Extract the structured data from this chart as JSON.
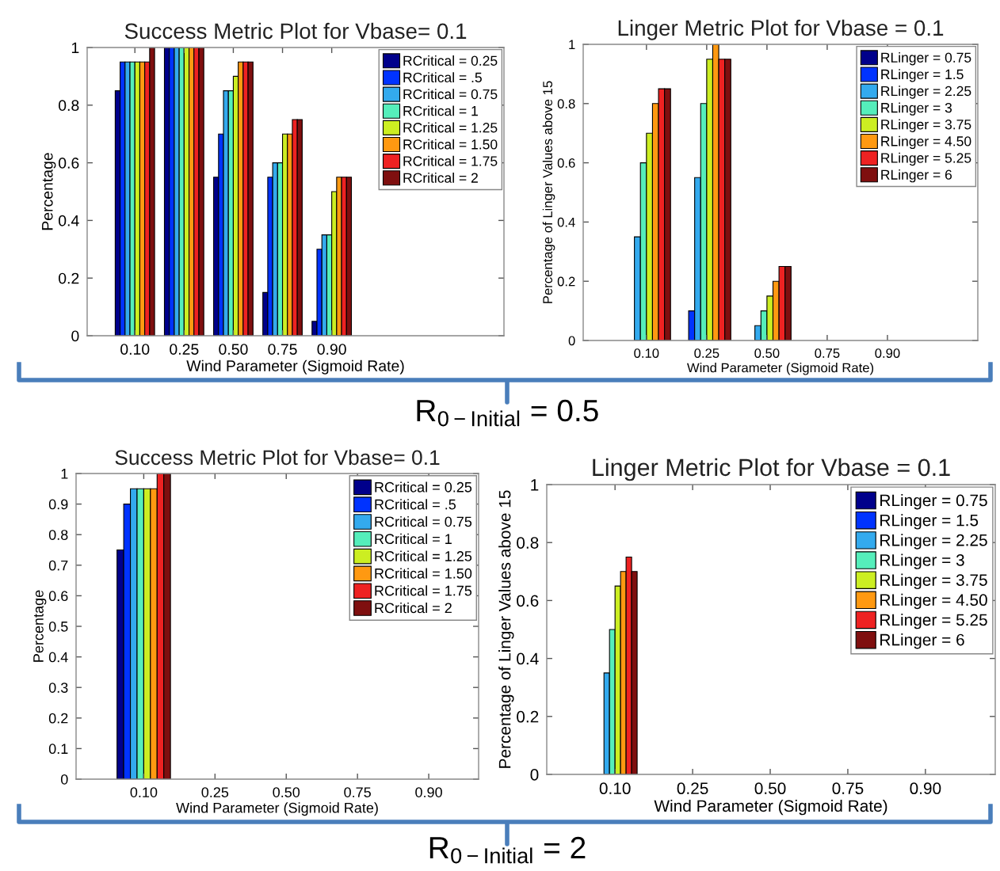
{
  "chart_data": [
    {
      "type": "bar",
      "title": "Success Metric Plot for Vbase= 0.1",
      "xlabel": "Wind Parameter (Sigmoid Rate)",
      "ylabel": "Percentage",
      "categories": [
        "0.10",
        "0.25",
        "0.50",
        "0.75",
        "0.90"
      ],
      "ylim": [
        0,
        1
      ],
      "yticks": [
        0,
        0.2,
        0.4,
        0.6,
        0.8,
        1
      ],
      "legend": "top right",
      "annotations": [
        "R$_{0−Initial}$ = 0.5"
      ],
      "series": [
        {
          "name": "RCritical = 0.25",
          "color": "#00008b",
          "values": [
            0.85,
            1,
            0.55,
            0.15,
            0.05
          ]
        },
        {
          "name": "RCritical = .5",
          "color": "#0033ff",
          "values": [
            0.95,
            1,
            0.7,
            0.55,
            0.3
          ]
        },
        {
          "name": "RCritical = 0.75",
          "color": "#33aaee",
          "values": [
            0.95,
            1,
            0.85,
            0.6,
            0.35
          ]
        },
        {
          "name": "RCritical = 1",
          "color": "#55eebb",
          "values": [
            0.95,
            1,
            0.85,
            0.6,
            0.35
          ]
        },
        {
          "name": "RCritical = 1.25",
          "color": "#ccee22",
          "values": [
            0.95,
            1,
            0.9,
            0.7,
            0.5
          ]
        },
        {
          "name": "RCritical = 1.50",
          "color": "#ff9911",
          "values": [
            0.95,
            1,
            0.95,
            0.7,
            0.55
          ]
        },
        {
          "name": "RCritical = 1.75",
          "color": "#ee2222",
          "values": [
            0.95,
            1,
            0.95,
            0.75,
            0.55
          ]
        },
        {
          "name": "RCritical = 2",
          "color": "#7f0f0f",
          "values": [
            1,
            1,
            0.95,
            0.75,
            0.55
          ]
        }
      ]
    },
    {
      "type": "bar",
      "title": "Linger Metric Plot for Vbase = 0.1",
      "xlabel": "Wind Parameter (Sigmoid Rate)",
      "ylabel": "Percentage of Linger Values above 15",
      "categories": [
        "0.10",
        "0.25",
        "0.50",
        "0.75",
        "0.90"
      ],
      "ylim": [
        0,
        1
      ],
      "yticks": [
        0,
        0.2,
        0.4,
        0.6,
        0.8,
        1
      ],
      "legend": "top right",
      "series": [
        {
          "name": "RLinger = 0.75",
          "color": "#00008b",
          "values": [
            0,
            0,
            0,
            0,
            0
          ]
        },
        {
          "name": "RLinger = 1.5",
          "color": "#0033ff",
          "values": [
            0,
            0.1,
            0,
            0,
            0
          ]
        },
        {
          "name": "RLinger = 2.25",
          "color": "#33aaee",
          "values": [
            0.35,
            0.55,
            0.05,
            0,
            0
          ]
        },
        {
          "name": "RLinger = 3",
          "color": "#55eebb",
          "values": [
            0.6,
            0.8,
            0.1,
            0,
            0
          ]
        },
        {
          "name": "RLinger = 3.75",
          "color": "#ccee22",
          "values": [
            0.7,
            0.95,
            0.15,
            0,
            0
          ]
        },
        {
          "name": "RLinger = 4.50",
          "color": "#ff9911",
          "values": [
            0.8,
            1,
            0.2,
            0,
            0
          ]
        },
        {
          "name": "RLinger = 5.25",
          "color": "#ee2222",
          "values": [
            0.85,
            0.95,
            0.25,
            0,
            0
          ]
        },
        {
          "name": "RLinger = 6",
          "color": "#7f0f0f",
          "values": [
            0.85,
            0.95,
            0.25,
            0,
            0
          ]
        }
      ]
    },
    {
      "type": "bar",
      "title": "Success Metric Plot for Vbase= 0.1",
      "xlabel": "Wind Parameter (Sigmoid Rate)",
      "ylabel": "Percentage",
      "categories": [
        "0.10",
        "0.25",
        "0.50",
        "0.75",
        "0.90"
      ],
      "ylim": [
        0,
        1
      ],
      "yticks": [
        0,
        0.1,
        0.2,
        0.3,
        0.4,
        0.5,
        0.6,
        0.7,
        0.8,
        0.9,
        1
      ],
      "legend": "top right",
      "annotations": [
        "R$_{0−Initial}$ = 2"
      ],
      "series": [
        {
          "name": "RCritical = 0.25",
          "color": "#00008b",
          "values": [
            0.75,
            0,
            0,
            0,
            0
          ]
        },
        {
          "name": "RCritical = .5",
          "color": "#0033ff",
          "values": [
            0.9,
            0,
            0,
            0,
            0
          ]
        },
        {
          "name": "RCritical = 0.75",
          "color": "#33aaee",
          "values": [
            0.95,
            0,
            0,
            0,
            0
          ]
        },
        {
          "name": "RCritical = 1",
          "color": "#55eebb",
          "values": [
            0.95,
            0,
            0,
            0,
            0
          ]
        },
        {
          "name": "RCritical = 1.25",
          "color": "#ccee22",
          "values": [
            0.95,
            0,
            0,
            0,
            0
          ]
        },
        {
          "name": "RCritical = 1.50",
          "color": "#ff9911",
          "values": [
            0.95,
            0,
            0,
            0,
            0
          ]
        },
        {
          "name": "RCritical = 1.75",
          "color": "#ee2222",
          "values": [
            1,
            0,
            0,
            0,
            0
          ]
        },
        {
          "name": "RCritical = 2",
          "color": "#7f0f0f",
          "values": [
            1,
            0,
            0,
            0,
            0
          ]
        }
      ]
    },
    {
      "type": "bar",
      "title": "Linger Metric Plot for Vbase = 0.1",
      "xlabel": "Wind Parameter (Sigmoid Rate)",
      "ylabel": "Percentage of Linger Values above 15",
      "categories": [
        "0.10",
        "0.25",
        "0.50",
        "0.75",
        "0.90"
      ],
      "ylim": [
        0,
        1
      ],
      "yticks": [
        0,
        0.2,
        0.4,
        0.6,
        0.8,
        1
      ],
      "legend": "top right",
      "series": [
        {
          "name": "RLinger = 0.75",
          "color": "#00008b",
          "values": [
            0,
            0,
            0,
            0,
            0
          ]
        },
        {
          "name": "RLinger = 1.5",
          "color": "#0033ff",
          "values": [
            0,
            0,
            0,
            0,
            0
          ]
        },
        {
          "name": "RLinger = 2.25",
          "color": "#33aaee",
          "values": [
            0.35,
            0,
            0,
            0,
            0
          ]
        },
        {
          "name": "RLinger = 3",
          "color": "#55eebb",
          "values": [
            0.5,
            0,
            0,
            0,
            0
          ]
        },
        {
          "name": "RLinger = 3.75",
          "color": "#ccee22",
          "values": [
            0.65,
            0,
            0,
            0,
            0
          ]
        },
        {
          "name": "RLinger = 4.50",
          "color": "#ff9911",
          "values": [
            0.7,
            0,
            0,
            0,
            0
          ]
        },
        {
          "name": "RLinger = 5.25",
          "color": "#ee2222",
          "values": [
            0.75,
            0,
            0,
            0,
            0
          ]
        },
        {
          "name": "RLinger = 6",
          "color": "#7f0f0f",
          "values": [
            0.7,
            0,
            0,
            0,
            0
          ]
        }
      ]
    }
  ]
}
